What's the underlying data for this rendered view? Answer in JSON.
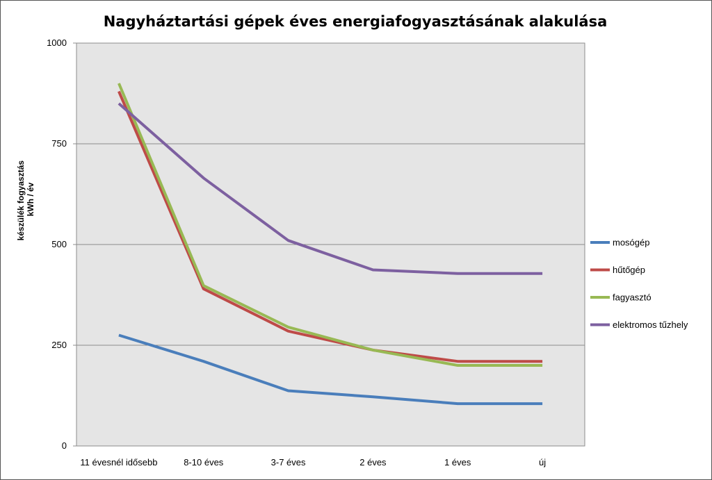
{
  "chart_data": {
    "type": "line",
    "title": "Nagyháztartási gépek éves energiafogyasztásának alakulása",
    "ylabel_lines": [
      "készülék fogyasztás",
      "kWh / év"
    ],
    "xlabel": "",
    "categories": [
      "11 évesnél idősebb",
      "8-10 éves",
      "3-7 éves",
      "2 éves",
      "1 éves",
      "új"
    ],
    "ylim": [
      0,
      1000
    ],
    "yticks": [
      0,
      250,
      500,
      750,
      1000
    ],
    "grid": true,
    "legend_position": "right",
    "series": [
      {
        "name": "mosógép",
        "color": "#4A7EBB",
        "values": [
          275,
          210,
          137,
          122,
          105,
          105
        ]
      },
      {
        "name": "hűtőgép",
        "color": "#BE4B48",
        "values": [
          880,
          390,
          285,
          238,
          210,
          210
        ]
      },
      {
        "name": "fagyasztó",
        "color": "#98B954",
        "values": [
          900,
          398,
          295,
          238,
          200,
          200
        ]
      },
      {
        "name": "elektromos tűzhely",
        "color": "#7D60A0",
        "values": [
          850,
          665,
          510,
          437,
          428,
          428
        ]
      }
    ]
  }
}
